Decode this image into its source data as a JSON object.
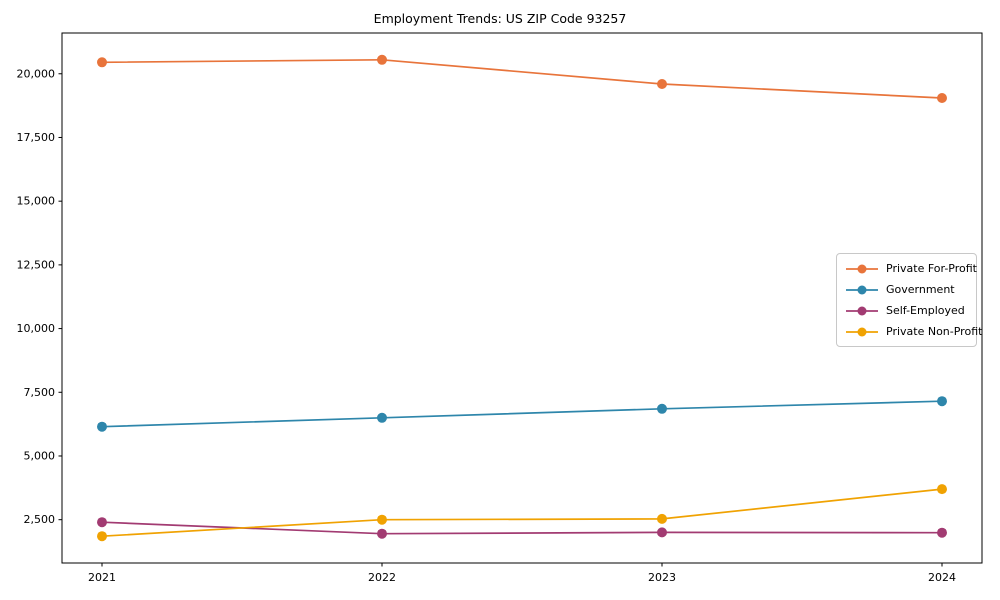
{
  "chart_data": {
    "type": "line",
    "title": "Employment Trends: US ZIP Code 93257",
    "xlabel": "",
    "ylabel": "",
    "grid": false,
    "legend_position": "center right",
    "marker": "circle",
    "x_tick_labels": [
      "2021",
      "2022",
      "2023",
      "2024"
    ],
    "ylim": [
      800,
      21600
    ],
    "yticks": [
      2500,
      5000,
      7500,
      10000,
      12500,
      15000,
      17500,
      20000
    ],
    "ytick_labels": [
      "2,500",
      "5,000",
      "7,500",
      "10,000",
      "12,500",
      "15,000",
      "17,500",
      "20,000"
    ],
    "series": [
      {
        "name": "Private For-Profit",
        "color": "#E8743B",
        "values": [
          20450,
          20550,
          19600,
          19050
        ]
      },
      {
        "name": "Government",
        "color": "#2E86AB",
        "values": [
          6150,
          6500,
          6850,
          7150
        ]
      },
      {
        "name": "Self-Employed",
        "color": "#A23B72",
        "values": [
          2400,
          1950,
          2000,
          1990
        ]
      },
      {
        "name": "Private Non-Profit",
        "color": "#F0A202",
        "values": [
          1850,
          2500,
          2530,
          3700
        ]
      }
    ]
  }
}
